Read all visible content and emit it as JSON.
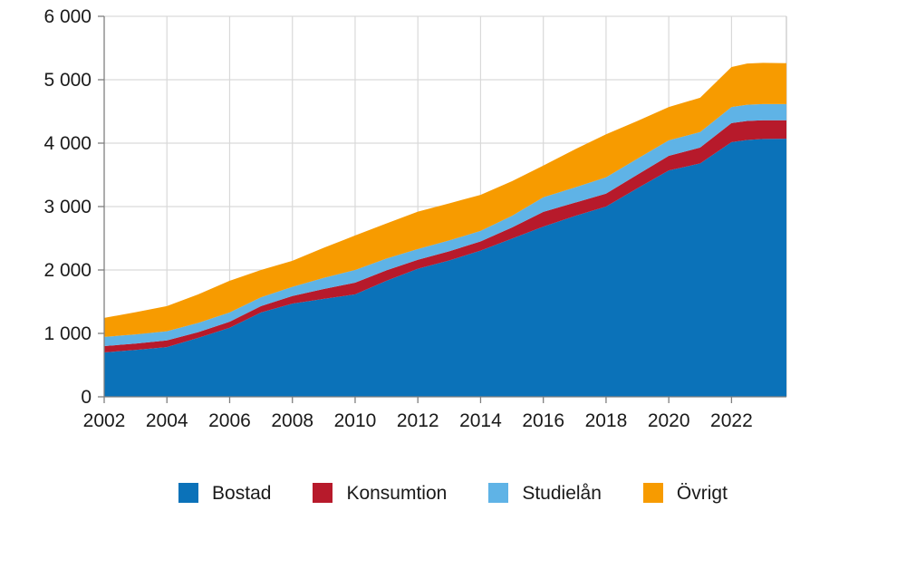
{
  "page": {
    "background": "#ffffff",
    "text_color": "#1a1a1a",
    "gridline_color": "#d9d9d9",
    "axis_color": "#7f7f7f",
    "right_border_color": "#c6c6c6"
  },
  "chart_data": {
    "type": "area",
    "stacked": true,
    "title": "",
    "xlabel": "",
    "ylabel": "",
    "xlim": [
      2002,
      2023.75
    ],
    "ylim": [
      0,
      6000
    ],
    "grid": true,
    "legend_position": "bottom",
    "x_tick_values": [
      2002,
      2004,
      2006,
      2008,
      2010,
      2012,
      2014,
      2016,
      2018,
      2020,
      2022
    ],
    "x_tick_labels": [
      "2002",
      "2004",
      "2006",
      "2008",
      "2010",
      "2012",
      "2014",
      "2016",
      "2018",
      "2020",
      "2022"
    ],
    "y_tick_values": [
      0,
      1000,
      2000,
      3000,
      4000,
      5000,
      6000
    ],
    "y_tick_labels": [
      "0",
      "1 000",
      "2 000",
      "3 000",
      "4 000",
      "5 000",
      "6 000"
    ],
    "x": [
      2002,
      2003,
      2004,
      2005,
      2006,
      2007,
      2008,
      2009,
      2010,
      2011,
      2012,
      2013,
      2014,
      2015,
      2016,
      2017,
      2018,
      2019,
      2020,
      2021,
      2022,
      2022.5,
      2023,
      2023.75
    ],
    "series": [
      {
        "name": "Bostad",
        "color": "#0b72b9",
        "values": [
          700,
          740,
          785,
          930,
          1090,
          1330,
          1470,
          1545,
          1615,
          1830,
          2020,
          2150,
          2305,
          2495,
          2685,
          2850,
          3000,
          3290,
          3570,
          3680,
          4015,
          4050,
          4065,
          4070
        ]
      },
      {
        "name": "Konsumtion",
        "color": "#b71a2b",
        "values": [
          100,
          100,
          105,
          90,
          95,
          100,
          120,
          155,
          185,
          165,
          140,
          145,
          145,
          175,
          230,
          210,
          205,
          215,
          230,
          250,
          300,
          300,
          295,
          290
        ]
      },
      {
        "name": "Studielån",
        "color": "#5fb3e6",
        "values": [
          145,
          145,
          145,
          145,
          145,
          140,
          145,
          175,
          200,
          185,
          170,
          170,
          165,
          185,
          230,
          240,
          255,
          250,
          245,
          245,
          255,
          255,
          255,
          255
        ]
      },
      {
        "name": "Övrigt",
        "color": "#f79b00",
        "values": [
          300,
          350,
          395,
          450,
          500,
          430,
          410,
          475,
          545,
          555,
          590,
          585,
          570,
          545,
          500,
          600,
          680,
          595,
          525,
          540,
          630,
          650,
          650,
          645
        ]
      }
    ]
  }
}
